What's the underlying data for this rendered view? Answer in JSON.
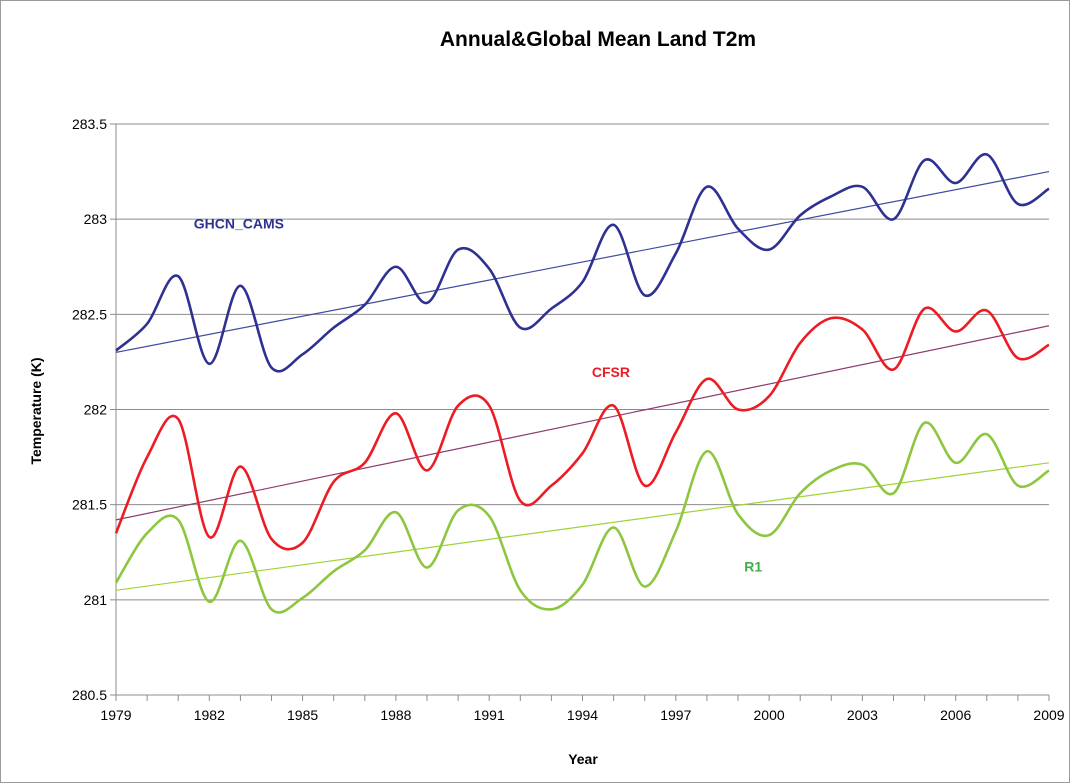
{
  "chart_data": {
    "type": "line",
    "title": "Annual&Global Mean Land T2m",
    "xlabel": "Year",
    "ylabel": "Temperature (K)",
    "xlim": [
      1979,
      2009
    ],
    "ylim": [
      280.5,
      283.5
    ],
    "xticks": [
      1979,
      1982,
      1985,
      1988,
      1991,
      1994,
      1997,
      2000,
      2003,
      2006,
      2009
    ],
    "yticks": [
      280.5,
      281,
      281.5,
      282,
      282.5,
      283,
      283.5
    ],
    "ytick_labels": [
      "280.5",
      "281",
      "281.5",
      "282",
      "282.5",
      "283",
      "283.5"
    ],
    "grid": true,
    "legend": "none",
    "series": [
      {
        "name": "GHCN_CAMS",
        "color": "#2e3192",
        "trend_color": "#3f4ba0",
        "trend": [
          [
            1979,
            282.3
          ],
          [
            2009,
            283.25
          ]
        ],
        "x": [
          1979,
          1980,
          1981,
          1982,
          1983,
          1984,
          1985,
          1986,
          1987,
          1988,
          1989,
          1990,
          1991,
          1992,
          1993,
          1994,
          1995,
          1996,
          1997,
          1998,
          1999,
          2000,
          2001,
          2002,
          2003,
          2004,
          2005,
          2006,
          2007,
          2008,
          2009
        ],
        "values": [
          282.31,
          282.45,
          282.7,
          282.24,
          282.65,
          282.22,
          282.29,
          282.43,
          282.55,
          282.75,
          282.56,
          282.84,
          282.74,
          282.43,
          282.53,
          282.67,
          282.97,
          282.6,
          282.82,
          283.17,
          282.95,
          282.84,
          283.02,
          283.12,
          283.17,
          283.0,
          283.31,
          283.19,
          283.34,
          283.08,
          283.16
        ]
      },
      {
        "name": "CFSR",
        "color": "#ed1c24",
        "trend_color": "#8e3a6d",
        "trend": [
          [
            1979,
            281.42
          ],
          [
            2009,
            282.44
          ]
        ],
        "x": [
          1979,
          1980,
          1981,
          1982,
          1983,
          1984,
          1985,
          1986,
          1987,
          1988,
          1989,
          1990,
          1991,
          1992,
          1993,
          1994,
          1995,
          1996,
          1997,
          1998,
          1999,
          2000,
          2001,
          2002,
          2003,
          2004,
          2005,
          2006,
          2007,
          2008,
          2009
        ],
        "values": [
          281.35,
          281.75,
          281.95,
          281.33,
          281.7,
          281.32,
          281.3,
          281.62,
          281.72,
          281.98,
          281.68,
          282.02,
          282.02,
          281.52,
          281.6,
          281.77,
          282.02,
          281.6,
          281.88,
          282.16,
          282.0,
          282.07,
          282.35,
          282.48,
          282.42,
          282.21,
          282.53,
          282.41,
          282.52,
          282.27,
          282.34
        ]
      },
      {
        "name": "R1",
        "color": "#8dc63f",
        "trend_color": "#a2d23a",
        "trend": [
          [
            1979,
            281.05
          ],
          [
            2009,
            281.72
          ]
        ],
        "x": [
          1979,
          1980,
          1981,
          1982,
          1983,
          1984,
          1985,
          1986,
          1987,
          1988,
          1989,
          1990,
          1991,
          1992,
          1993,
          1994,
          1995,
          1996,
          1997,
          1998,
          1999,
          2000,
          2001,
          2002,
          2003,
          2004,
          2005,
          2006,
          2007,
          2008,
          2009
        ],
        "values": [
          281.09,
          281.35,
          281.42,
          280.99,
          281.31,
          280.95,
          281.01,
          281.15,
          281.26,
          281.46,
          281.17,
          281.47,
          281.44,
          281.05,
          280.95,
          281.08,
          281.38,
          281.07,
          281.36,
          281.78,
          281.45,
          281.34,
          281.56,
          281.68,
          281.71,
          281.56,
          281.93,
          281.72,
          281.87,
          281.6,
          281.68
        ]
      }
    ],
    "annotations": [
      {
        "text": "GHCN_CAMS",
        "x": 1981.5,
        "y": 282.95,
        "color": "#2e3192"
      },
      {
        "text": "CFSR",
        "x": 1994.3,
        "y": 282.17,
        "color": "#ed1c24"
      },
      {
        "text": "R1",
        "x": 1999.2,
        "y": 281.15,
        "color": "#3fae49"
      }
    ]
  }
}
